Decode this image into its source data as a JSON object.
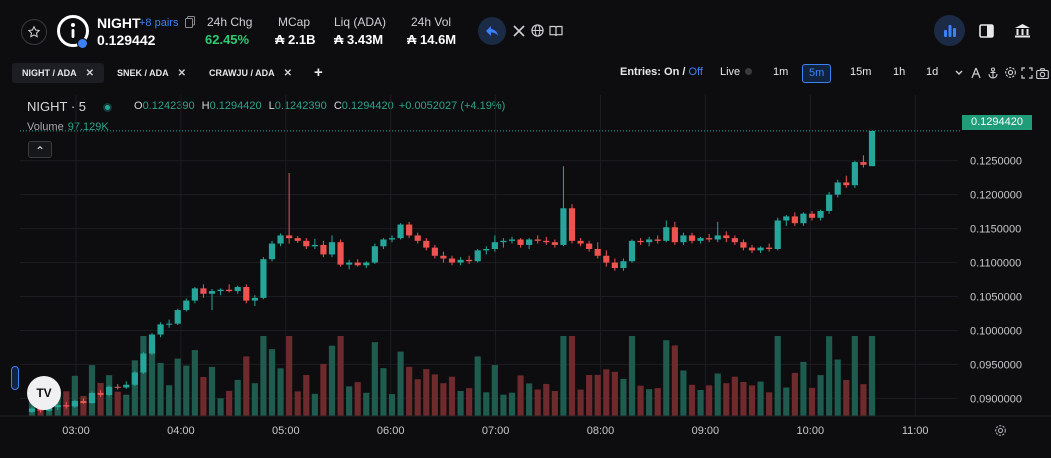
{
  "token": {
    "name": "NIGHT",
    "pairs": "+8 pairs",
    "price": "0.129442"
  },
  "stats": [
    {
      "label": "24h Chg",
      "value": "62.45%"
    },
    {
      "label": "MCap",
      "value": "₳ 2.1B"
    },
    {
      "label": "Liq (ADA)",
      "value": "₳ 3.43M"
    },
    {
      "label": "24h Vol",
      "value": "₳ 14.6M"
    }
  ],
  "tabs": [
    {
      "label": "NIGHT / ADA",
      "close": "✕"
    },
    {
      "label": "SNEK / ADA",
      "close": "✕"
    },
    {
      "label": "CRAWJU / ADA",
      "close": "✕"
    }
  ],
  "add_tab": "+",
  "toolbar": {
    "entries_label": "Entries:",
    "entries_on": "On",
    "entries_sep": "/",
    "entries_off": "Off",
    "live": "Live",
    "timeframes": [
      "1m",
      "5m",
      "15m",
      "1h",
      "1d"
    ],
    "active_timeframe": "5m"
  },
  "legend": {
    "symbol": "NIGHT · 5",
    "o_label": "O",
    "o": "0.1242390",
    "h_label": "H",
    "h": "0.1294420",
    "l_label": "L",
    "l": "0.1242390",
    "c_label": "C",
    "c": "0.1294420",
    "change": "+0.0052027 (+4.19%)",
    "volume_label": "Volume",
    "volume": "97.129K"
  },
  "collapse_glyph": "⌃",
  "logo_text": "TV",
  "current_price_tag": "0.1294420",
  "colors": {
    "up": "#26a69a",
    "down": "#ef5350",
    "accent": "#3b82f6",
    "up_vol": "#1f5b4e",
    "down_vol": "#6e2a2c"
  },
  "chart_data": {
    "type": "candlestick",
    "x_ticks": [
      "03:00",
      "04:00",
      "05:00",
      "06:00",
      "07:00",
      "08:00",
      "09:00",
      "10:00",
      "11:00"
    ],
    "y_ticks": [
      "0.1250000",
      "0.1200000",
      "0.1150000",
      "0.1100000",
      "0.1050000",
      "0.1000000",
      "0.0950000",
      "0.0900000"
    ],
    "ylim": [
      0.0874,
      0.131
    ],
    "series": [
      {
        "name": "price",
        "candles": [
          [
            0.088,
            0.0888,
            0.0878,
            0.0885
          ],
          [
            0.0885,
            0.089,
            0.0879,
            0.0882
          ],
          [
            0.0882,
            0.089,
            0.088,
            0.0887
          ],
          [
            0.0887,
            0.0894,
            0.0883,
            0.089
          ],
          [
            0.089,
            0.0895,
            0.0885,
            0.0888
          ],
          [
            0.0888,
            0.0898,
            0.0886,
            0.0896
          ],
          [
            0.0896,
            0.09,
            0.0892,
            0.0893
          ],
          [
            0.0893,
            0.091,
            0.0892,
            0.0908
          ],
          [
            0.0908,
            0.0912,
            0.0902,
            0.0905
          ],
          [
            0.0905,
            0.0919,
            0.0903,
            0.0917
          ],
          [
            0.0917,
            0.0921,
            0.0913,
            0.0916
          ],
          [
            0.0916,
            0.0925,
            0.0914,
            0.092
          ],
          [
            0.092,
            0.094,
            0.0918,
            0.0938
          ],
          [
            0.0938,
            0.0968,
            0.0936,
            0.0966
          ],
          [
            0.0966,
            0.0996,
            0.0964,
            0.0994
          ],
          [
            0.0994,
            0.1012,
            0.099,
            0.1009
          ],
          [
            0.1009,
            0.1016,
            0.1004,
            0.101
          ],
          [
            0.101,
            0.1032,
            0.1008,
            0.103
          ],
          [
            0.103,
            0.1047,
            0.1028,
            0.1044
          ],
          [
            0.1044,
            0.1064,
            0.104,
            0.1062
          ],
          [
            0.1062,
            0.1068,
            0.1048,
            0.1054
          ],
          [
            0.1054,
            0.1061,
            0.103,
            0.1058
          ],
          [
            0.1058,
            0.1062,
            0.1052,
            0.106
          ],
          [
            0.106,
            0.1068,
            0.1056,
            0.1058
          ],
          [
            0.1058,
            0.1066,
            0.1054,
            0.1064
          ],
          [
            0.1064,
            0.1068,
            0.104,
            0.1044
          ],
          [
            0.1044,
            0.1052,
            0.1036,
            0.1048
          ],
          [
            0.1048,
            0.1108,
            0.1046,
            0.1105
          ],
          [
            0.1105,
            0.1132,
            0.1102,
            0.1128
          ],
          [
            0.1128,
            0.1143,
            0.1124,
            0.114
          ],
          [
            0.114,
            0.1232,
            0.1128,
            0.1136
          ],
          [
            0.1136,
            0.1139,
            0.1129,
            0.1132
          ],
          [
            0.1132,
            0.1136,
            0.112,
            0.1124
          ],
          [
            0.1124,
            0.1135,
            0.112,
            0.1126
          ],
          [
            0.1126,
            0.1132,
            0.1108,
            0.1112
          ],
          [
            0.1112,
            0.114,
            0.1108,
            0.113
          ],
          [
            0.113,
            0.1134,
            0.1094,
            0.1097
          ],
          [
            0.1097,
            0.1104,
            0.109,
            0.11
          ],
          [
            0.11,
            0.1105,
            0.1094,
            0.1096
          ],
          [
            0.1096,
            0.1102,
            0.1092,
            0.11
          ],
          [
            0.11,
            0.1128,
            0.1098,
            0.1124
          ],
          [
            0.1124,
            0.1136,
            0.112,
            0.1134
          ],
          [
            0.1134,
            0.114,
            0.113,
            0.1136
          ],
          [
            0.1136,
            0.1158,
            0.1134,
            0.1156
          ],
          [
            0.1156,
            0.116,
            0.1136,
            0.114
          ],
          [
            0.114,
            0.1144,
            0.1128,
            0.1132
          ],
          [
            0.1132,
            0.1136,
            0.1118,
            0.1122
          ],
          [
            0.1122,
            0.1126,
            0.1106,
            0.111
          ],
          [
            0.111,
            0.1116,
            0.11,
            0.1106
          ],
          [
            0.1106,
            0.111,
            0.1096,
            0.11
          ],
          [
            0.11,
            0.1108,
            0.1096,
            0.1104
          ],
          [
            0.1104,
            0.111,
            0.1098,
            0.1102
          ],
          [
            0.1102,
            0.112,
            0.11,
            0.1118
          ],
          [
            0.1118,
            0.1124,
            0.1112,
            0.112
          ],
          [
            0.112,
            0.114,
            0.1116,
            0.113
          ],
          [
            0.113,
            0.1136,
            0.1122,
            0.1132
          ],
          [
            0.1132,
            0.1138,
            0.1128,
            0.1134
          ],
          [
            0.1134,
            0.1136,
            0.1122,
            0.1126
          ],
          [
            0.1126,
            0.1136,
            0.112,
            0.1134
          ],
          [
            0.1134,
            0.114,
            0.1128,
            0.1132
          ],
          [
            0.1132,
            0.1138,
            0.1126,
            0.113
          ],
          [
            0.113,
            0.1134,
            0.1122,
            0.1126
          ],
          [
            0.1126,
            0.1242,
            0.1124,
            0.118
          ],
          [
            0.118,
            0.1186,
            0.1128,
            0.1132
          ],
          [
            0.1132,
            0.1136,
            0.1124,
            0.1128
          ],
          [
            0.1128,
            0.1132,
            0.1116,
            0.112
          ],
          [
            0.112,
            0.113,
            0.1106,
            0.111
          ],
          [
            0.111,
            0.1118,
            0.1094,
            0.11
          ],
          [
            0.11,
            0.1106,
            0.1088,
            0.1092
          ],
          [
            0.1092,
            0.1106,
            0.1088,
            0.1102
          ],
          [
            0.1102,
            0.1134,
            0.11,
            0.1132
          ],
          [
            0.1132,
            0.1136,
            0.1126,
            0.113
          ],
          [
            0.113,
            0.1138,
            0.1124,
            0.1134
          ],
          [
            0.1134,
            0.114,
            0.1128,
            0.1132
          ],
          [
            0.1132,
            0.1162,
            0.113,
            0.1152
          ],
          [
            0.1152,
            0.116,
            0.1126,
            0.113
          ],
          [
            0.113,
            0.1144,
            0.1126,
            0.114
          ],
          [
            0.114,
            0.1144,
            0.1128,
            0.1132
          ],
          [
            0.1132,
            0.1138,
            0.1128,
            0.1136
          ],
          [
            0.1136,
            0.1142,
            0.113,
            0.1134
          ],
          [
            0.1134,
            0.116,
            0.113,
            0.114
          ],
          [
            0.114,
            0.1146,
            0.113,
            0.1136
          ],
          [
            0.1136,
            0.114,
            0.1126,
            0.113
          ],
          [
            0.113,
            0.1134,
            0.1118,
            0.1122
          ],
          [
            0.1122,
            0.1126,
            0.1114,
            0.1118
          ],
          [
            0.1118,
            0.1124,
            0.1114,
            0.1122
          ],
          [
            0.1122,
            0.1128,
            0.1116,
            0.112
          ],
          [
            0.112,
            0.1166,
            0.1118,
            0.1162
          ],
          [
            0.1162,
            0.117,
            0.1154,
            0.1168
          ],
          [
            0.1168,
            0.1174,
            0.1154,
            0.1158
          ],
          [
            0.1158,
            0.1174,
            0.1154,
            0.1172
          ],
          [
            0.1172,
            0.1176,
            0.1162,
            0.1166
          ],
          [
            0.1166,
            0.1178,
            0.1162,
            0.1176
          ],
          [
            0.1176,
            0.1204,
            0.1172,
            0.12
          ],
          [
            0.12,
            0.1222,
            0.1196,
            0.1218
          ],
          [
            0.1218,
            0.1228,
            0.121,
            0.1214
          ],
          [
            0.1214,
            0.125,
            0.121,
            0.1248
          ],
          [
            0.1248,
            0.1258,
            0.124,
            0.1244
          ],
          [
            0.1242,
            0.1294,
            0.1242,
            0.1294
          ]
        ]
      }
    ],
    "volume_ylim": [
      0,
      1
    ]
  }
}
